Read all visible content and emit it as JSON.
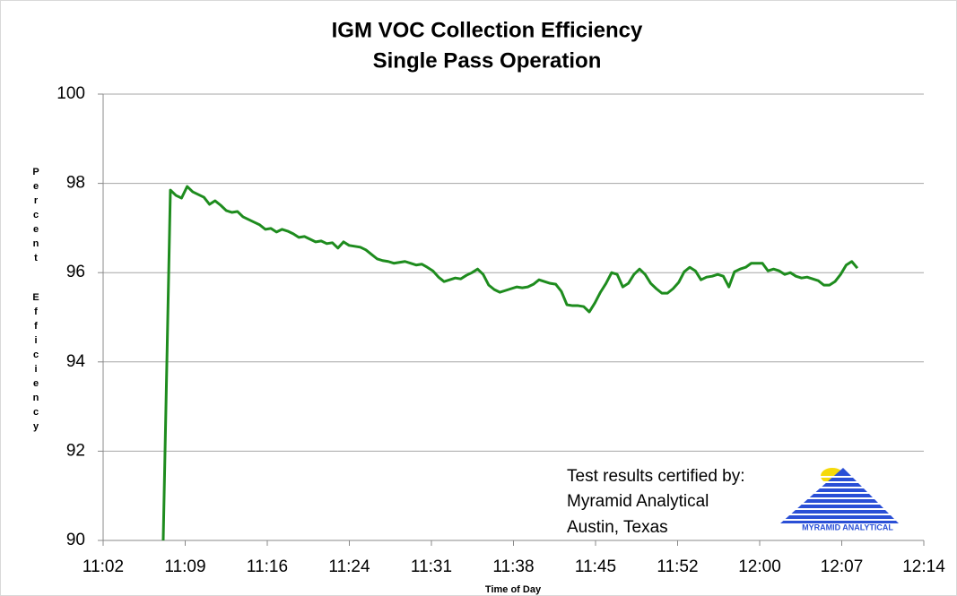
{
  "chart_data": {
    "type": "line",
    "title": "IGM VOC Collection Efficiency",
    "subtitle": "Single Pass Operation",
    "y_label": "Percent Efficiency",
    "x_label": "Time of Day",
    "annotation": [
      "Test results certified by:",
      "Myramid Analytical",
      "Austin, Texas"
    ],
    "logo_text": "MYRAMID ANALYTICAL",
    "grid": true,
    "xlim": [
      662.4,
      734.4
    ],
    "xticks": [
      {
        "value": 662.4,
        "label": "11:02"
      },
      {
        "value": 669.6,
        "label": "11:09"
      },
      {
        "value": 676.8,
        "label": "11:16"
      },
      {
        "value": 684,
        "label": "11:24"
      },
      {
        "value": 691.2,
        "label": "11:31"
      },
      {
        "value": 698.4,
        "label": "11:38"
      },
      {
        "value": 705.6,
        "label": "11:45"
      },
      {
        "value": 712.8,
        "label": "11:52"
      },
      {
        "value": 720,
        "label": "12:00"
      },
      {
        "value": 727.2,
        "label": "12:07"
      },
      {
        "value": 734.4,
        "label": "12:14"
      }
    ],
    "ylim": [
      90,
      100
    ],
    "yticks": [
      90,
      92,
      94,
      96,
      98,
      100
    ],
    "x": [
      667.67,
      668.3,
      668.79,
      669.28,
      669.77,
      670.26,
      670.75,
      671.24,
      671.73,
      672.22,
      672.71,
      673.2,
      673.69,
      674.18,
      674.67,
      675.16,
      675.65,
      676.14,
      676.63,
      677.12,
      677.61,
      678.1,
      678.59,
      679.08,
      679.57,
      680.06,
      680.55,
      681.04,
      681.53,
      682.02,
      682.51,
      683.0,
      683.49,
      683.98,
      684.47,
      684.96,
      685.45,
      685.94,
      686.43,
      686.92,
      687.41,
      687.9,
      688.39,
      688.88,
      689.37,
      689.86,
      690.35,
      690.84,
      691.33,
      691.82,
      692.31,
      692.8,
      693.29,
      693.78,
      694.27,
      694.76,
      695.25,
      695.74,
      696.23,
      696.72,
      697.21,
      697.7,
      698.19,
      698.68,
      699.17,
      699.66,
      700.15,
      700.64,
      701.13,
      701.62,
      702.11,
      702.6,
      703.09,
      703.58,
      704.07,
      704.56,
      705.05,
      705.54,
      706.03,
      706.52,
      707.01,
      707.5,
      707.99,
      708.48,
      708.97,
      709.46,
      709.95,
      710.44,
      710.93,
      711.42,
      711.91,
      712.4,
      712.89,
      713.38,
      713.87,
      714.36,
      714.85,
      715.34,
      715.83,
      716.32,
      716.81,
      717.3,
      717.79,
      718.28,
      718.77,
      719.26,
      719.75,
      720.24,
      720.73,
      721.22,
      721.71,
      722.2,
      722.69,
      723.18,
      723.67,
      724.16,
      724.65,
      725.14,
      725.63,
      726.12,
      726.61,
      727.1,
      727.59,
      728.08,
      728.57
    ],
    "series": [
      {
        "name": "Efficiency",
        "color": "#1e8c1e",
        "values": [
          90,
          97.85,
          97.73,
          97.67,
          97.93,
          97.81,
          97.75,
          97.69,
          97.53,
          97.61,
          97.51,
          97.39,
          97.35,
          97.37,
          97.25,
          97.19,
          97.13,
          97.07,
          96.97,
          96.99,
          96.91,
          96.97,
          96.93,
          96.87,
          96.79,
          96.81,
          96.75,
          96.69,
          96.71,
          96.65,
          96.67,
          96.55,
          96.69,
          96.61,
          96.59,
          96.57,
          96.51,
          96.41,
          96.31,
          96.27,
          96.25,
          96.21,
          96.23,
          96.25,
          96.21,
          96.17,
          96.19,
          96.12,
          96.04,
          95.9,
          95.8,
          95.84,
          95.88,
          95.86,
          95.94,
          96.0,
          96.08,
          95.96,
          95.72,
          95.62,
          95.56,
          95.6,
          95.64,
          95.68,
          95.66,
          95.68,
          95.74,
          95.84,
          95.8,
          95.76,
          95.74,
          95.58,
          95.28,
          95.26,
          95.26,
          95.24,
          95.12,
          95.32,
          95.56,
          95.76,
          96.0,
          95.96,
          95.68,
          95.76,
          95.96,
          96.08,
          95.96,
          95.76,
          95.64,
          95.54,
          95.54,
          95.64,
          95.78,
          96.02,
          96.12,
          96.04,
          95.84,
          95.9,
          95.92,
          95.96,
          95.92,
          95.68,
          96.02,
          96.08,
          96.12,
          96.21,
          96.21,
          96.21,
          96.04,
          96.08,
          96.04,
          95.96,
          96.0,
          95.92,
          95.88,
          95.9,
          95.86,
          95.82,
          95.72,
          95.72,
          95.8,
          95.96,
          96.17,
          96.25,
          96.1
        ]
      }
    ]
  }
}
